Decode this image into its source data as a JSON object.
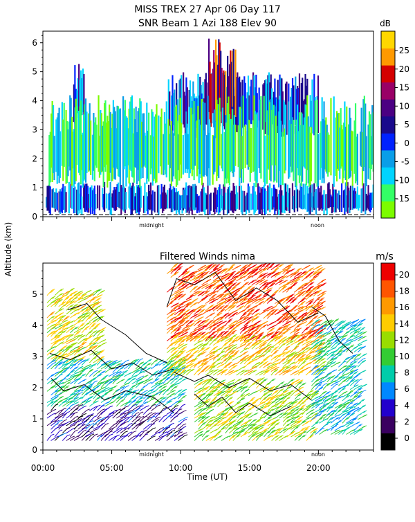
{
  "header": {
    "title_line1": "MISS TREX   27 Apr 06 Day 117",
    "title_line2": "SNR Beam 1 Azi 188 Elev 90"
  },
  "shared": {
    "ylabel": "Altitude (km)",
    "xlabel": "Time (UT)",
    "time_ticks": [
      "00:00",
      "05:00",
      "10:00",
      "15:00",
      "20:00"
    ],
    "markers": [
      "midnight",
      "noon"
    ]
  },
  "chart_data": [
    {
      "type": "heatmap",
      "title": "",
      "xlabel": "",
      "ylabel": "Altitude (km)",
      "xlim": [
        0,
        24
      ],
      "ylim": [
        0,
        6.4
      ],
      "yticks": [
        "0",
        "1",
        "2",
        "3",
        "4",
        "5",
        "6"
      ],
      "colorbar": {
        "unit": "dB",
        "ticks": [
          "25",
          "20",
          "15",
          "10",
          "5",
          "0",
          "-5",
          "-10",
          "-15"
        ],
        "colors": [
          "#7cfc00",
          "#33ff66",
          "#00d4ff",
          "#0a9ee8",
          "#0022ff",
          "#1a0a8c",
          "#4b0082",
          "#990066",
          "#d40000",
          "#ff9900",
          "#ffd700"
        ]
      },
      "regions": [
        {
          "t0": 0.2,
          "t1": 24,
          "h0": 0.05,
          "h1": 1.2,
          "level": "high"
        },
        {
          "t0": 2.2,
          "t1": 3.0,
          "h0": 3.2,
          "h1": 5.3,
          "level": "high"
        },
        {
          "t0": 9.0,
          "t1": 20.0,
          "h0": 2.7,
          "h1": 5.0,
          "level": "high"
        },
        {
          "t0": 12.0,
          "t1": 14.0,
          "h0": 3.0,
          "h1": 6.3,
          "level": "peak"
        },
        {
          "t0": 0.2,
          "t1": 24,
          "h0": 1.0,
          "h1": 4.2,
          "level": "low"
        }
      ]
    },
    {
      "type": "scatter",
      "title": "Filtered Winds nima",
      "xlabel": "Time (UT)",
      "ylabel": "Altitude (km)",
      "xlim": [
        0,
        24
      ],
      "ylim": [
        0,
        6
      ],
      "yticks": [
        "0",
        "1",
        "2",
        "3",
        "4",
        "5"
      ],
      "colorbar": {
        "unit": "m/s",
        "ticks": [
          "20",
          "18",
          "16",
          "14",
          "12",
          "10",
          "8",
          "6",
          "4",
          "2",
          "0"
        ],
        "colors": [
          "#000000",
          "#3a0060",
          "#2200cc",
          "#0088ff",
          "#00ccaa",
          "#33cc33",
          "#99dd00",
          "#ffcc00",
          "#ff9900",
          "#ff5500",
          "#ee0000"
        ]
      },
      "series": [
        {
          "t0": 0.3,
          "t1": 4.0,
          "h0": 2.8,
          "h1": 5.0,
          "speed": 14
        },
        {
          "t0": 0.3,
          "t1": 10.0,
          "h0": 1.4,
          "h1": 2.8,
          "speed": 9
        },
        {
          "t0": 0.3,
          "t1": 10.0,
          "h0": 0.3,
          "h1": 1.3,
          "speed": 4
        },
        {
          "t0": 9.0,
          "t1": 20.0,
          "h0": 3.5,
          "h1": 5.8,
          "speed": 19
        },
        {
          "t0": 9.0,
          "t1": 20.0,
          "h0": 2.4,
          "h1": 3.5,
          "speed": 15
        },
        {
          "t0": 11.0,
          "t1": 19.5,
          "h0": 0.3,
          "h1": 2.2,
          "speed": 13
        },
        {
          "t0": 19.5,
          "t1": 23.0,
          "h0": 0.5,
          "h1": 4.0,
          "speed": 9
        }
      ]
    }
  ]
}
